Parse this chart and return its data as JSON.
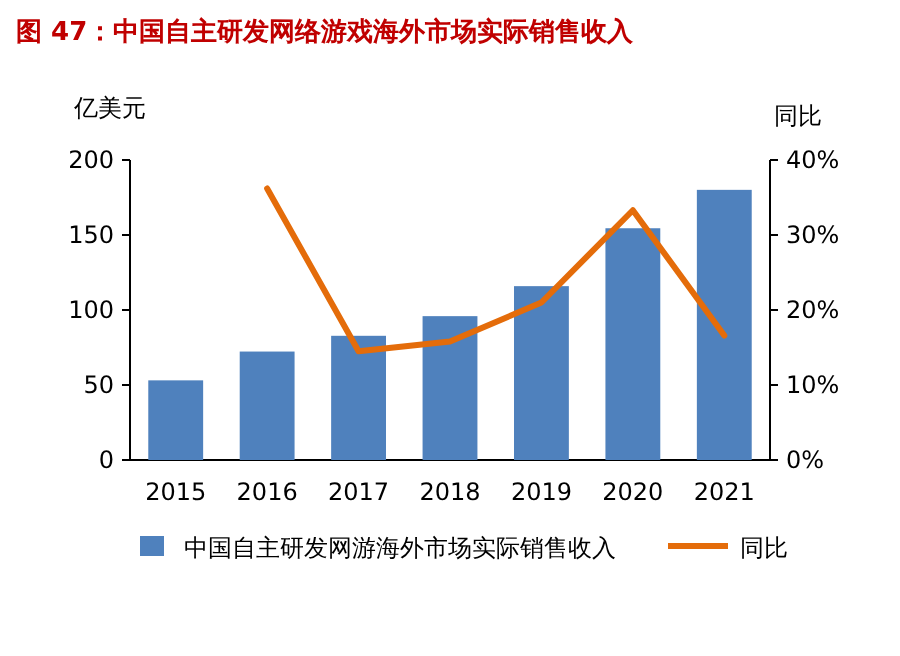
{
  "chart_data": {
    "type": "bar",
    "title": "图 47：中国自主研发网络游戏海外市场实际销售收入",
    "ylabel": "亿美元",
    "y2label": "同比",
    "categories": [
      "2015",
      "2016",
      "2017",
      "2018",
      "2019",
      "2020",
      "2021"
    ],
    "series": [
      {
        "name": "中国自主研发网游海外市场实际销售收入",
        "color": "#4f81bd",
        "values": [
          53.1,
          72.3,
          82.8,
          95.9,
          115.9,
          154.5,
          180.1
        ]
      },
      {
        "name": "同比",
        "type": "line",
        "axis": "y2",
        "color": "#e46c0a",
        "values": [
          null,
          36.2,
          14.5,
          15.8,
          21.0,
          33.3,
          16.6
        ]
      }
    ],
    "ylim": [
      0,
      200
    ],
    "yticks": [
      0,
      50,
      100,
      150,
      200
    ],
    "y2lim": [
      0,
      40
    ],
    "y2ticks": [
      {
        "value": 0,
        "label": "0%"
      },
      {
        "value": 10,
        "label": "10%"
      },
      {
        "value": 20,
        "label": "20%"
      },
      {
        "value": 30,
        "label": "30%"
      },
      {
        "value": 40,
        "label": "40%"
      }
    ],
    "legend": "bottom",
    "grid": false
  }
}
